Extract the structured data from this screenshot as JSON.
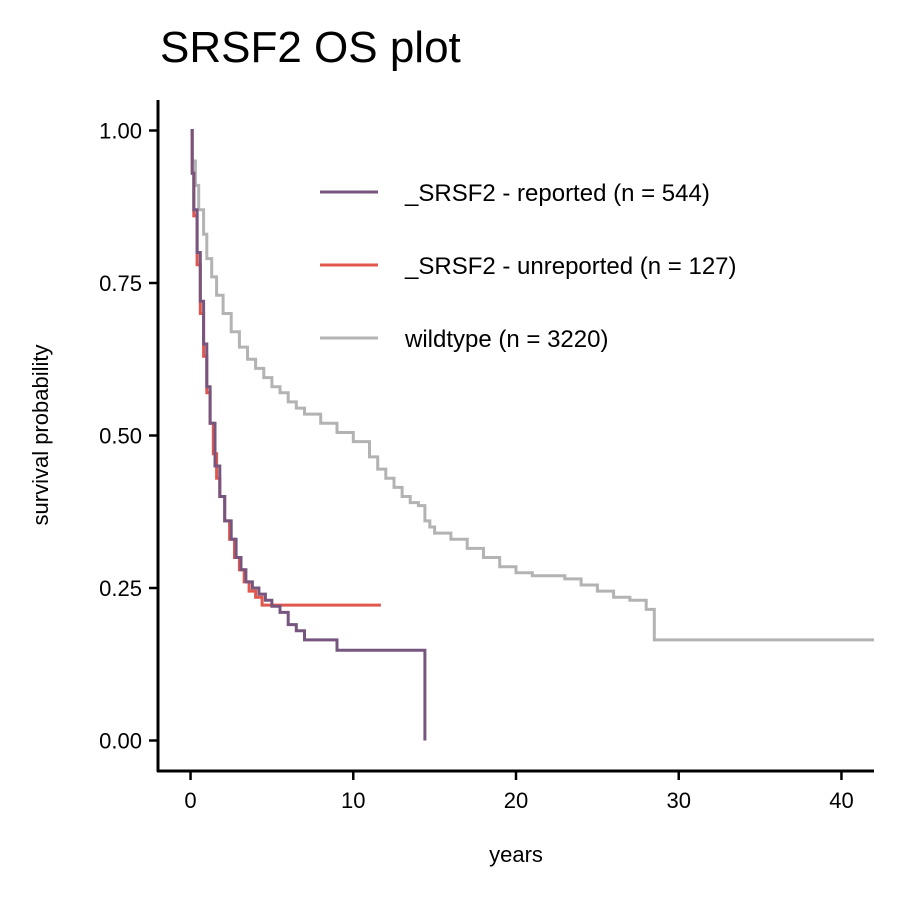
{
  "chart_data": {
    "type": "line",
    "step": true,
    "title": "SRSF2 OS plot",
    "xlabel": "years",
    "ylabel": "survival probability",
    "xlim": [
      -2,
      42
    ],
    "ylim": [
      -0.05,
      1.05
    ],
    "xticks": [
      0,
      10,
      20,
      30,
      40
    ],
    "xtick_labels": [
      "0",
      "10",
      "20",
      "30",
      "40"
    ],
    "yticks": [
      0,
      0.25,
      0.5,
      0.75,
      1.0
    ],
    "ytick_labels": [
      "0.00",
      "0.25",
      "0.50",
      "0.75",
      "1.00"
    ],
    "grid": false,
    "legend_position": "top-right",
    "series": [
      {
        "name": "_SRSF2 - reported (n = 544)",
        "color": "#76567F",
        "x": [
          0,
          0.1,
          0.2,
          0.4,
          0.6,
          0.8,
          1.0,
          1.2,
          1.5,
          1.8,
          2.1,
          2.5,
          2.8,
          3.1,
          3.4,
          3.8,
          4.2,
          4.6,
          5.0,
          5.5,
          6.0,
          6.5,
          7.0,
          8.0,
          9.0,
          10.0,
          11.0,
          12.0,
          13.0,
          14.0,
          14.4,
          14.4
        ],
        "y": [
          1.0,
          0.93,
          0.87,
          0.8,
          0.72,
          0.65,
          0.58,
          0.52,
          0.45,
          0.4,
          0.36,
          0.33,
          0.3,
          0.28,
          0.26,
          0.25,
          0.24,
          0.23,
          0.22,
          0.21,
          0.19,
          0.18,
          0.165,
          0.165,
          0.148,
          0.148,
          0.148,
          0.148,
          0.148,
          0.148,
          0.148,
          0.0
        ]
      },
      {
        "name": "_SRSF2 - unreported (n = 127)",
        "color": "#E1574D",
        "x": [
          0,
          0.1,
          0.2,
          0.4,
          0.6,
          0.8,
          1.0,
          1.2,
          1.4,
          1.6,
          1.8,
          2.1,
          2.4,
          2.7,
          3.0,
          3.3,
          3.6,
          4.0,
          4.4,
          6.0,
          8.0,
          10.0,
          11.7
        ],
        "y": [
          1.0,
          0.93,
          0.86,
          0.78,
          0.7,
          0.63,
          0.57,
          0.52,
          0.47,
          0.43,
          0.4,
          0.36,
          0.33,
          0.3,
          0.28,
          0.26,
          0.245,
          0.235,
          0.222,
          0.222,
          0.222,
          0.222,
          0.222
        ]
      },
      {
        "name": "wildtype (n = 3220)",
        "color": "#B3B3B3",
        "x": [
          0,
          0.1,
          0.3,
          0.5,
          0.8,
          1.0,
          1.3,
          1.6,
          2.0,
          2.5,
          3.0,
          3.5,
          4.0,
          4.5,
          5.0,
          5.5,
          6.0,
          6.5,
          7.0,
          8.0,
          9.0,
          10.0,
          11.0,
          11.5,
          12.0,
          12.5,
          13.0,
          13.5,
          14.0,
          14.4,
          14.7,
          15.0,
          16.0,
          17.0,
          18.0,
          19.0,
          20.0,
          21.0,
          22.0,
          23.0,
          24.0,
          25.0,
          26.0,
          27.0,
          28.0,
          28.5,
          30.0,
          35.0,
          40.0,
          42.0
        ],
        "y": [
          1.0,
          0.95,
          0.91,
          0.87,
          0.83,
          0.79,
          0.76,
          0.73,
          0.7,
          0.67,
          0.645,
          0.625,
          0.61,
          0.595,
          0.58,
          0.57,
          0.555,
          0.545,
          0.535,
          0.52,
          0.505,
          0.49,
          0.465,
          0.445,
          0.43,
          0.415,
          0.4,
          0.39,
          0.385,
          0.36,
          0.35,
          0.34,
          0.33,
          0.315,
          0.3,
          0.285,
          0.275,
          0.27,
          0.27,
          0.265,
          0.255,
          0.245,
          0.235,
          0.23,
          0.215,
          0.165,
          0.165,
          0.165,
          0.165,
          0.165
        ]
      }
    ]
  }
}
